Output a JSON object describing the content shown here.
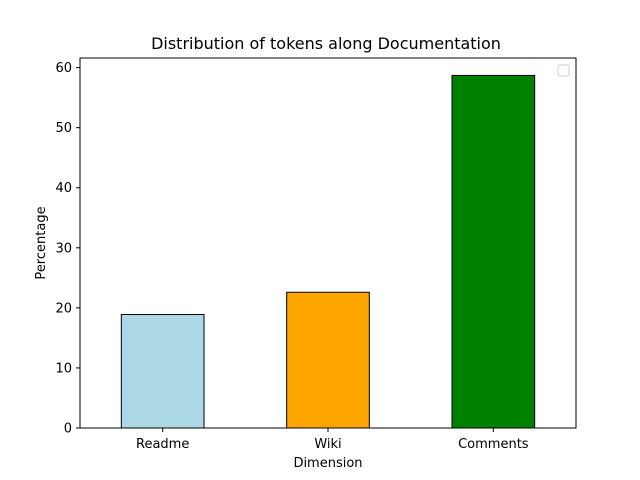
{
  "chart_data": {
    "type": "bar",
    "title": "Distribution of tokens along Documentation",
    "xlabel": "Dimension",
    "ylabel": "Percentage",
    "categories": [
      "Readme",
      "Wiki",
      "Comments"
    ],
    "values": [
      18.9,
      22.6,
      58.7
    ],
    "colors": [
      "#add8e6",
      "#ffa500",
      "#008000"
    ],
    "edge_color": "#000000",
    "ylim": [
      0,
      61.6
    ],
    "yticks": [
      0,
      10,
      20,
      30,
      40,
      50,
      60
    ],
    "grid": false,
    "legend": {
      "placement": "top-right",
      "entries": []
    }
  }
}
